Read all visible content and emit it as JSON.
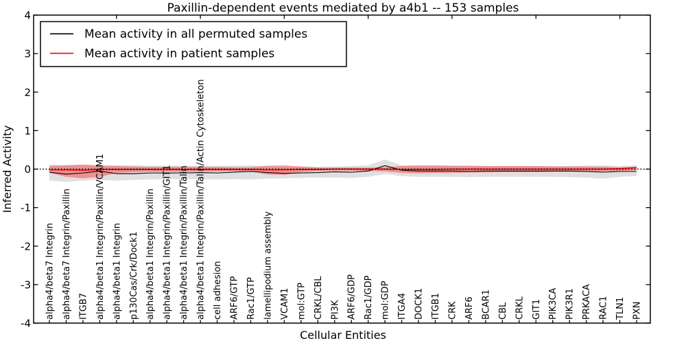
{
  "legend": {
    "position": "upper left",
    "entries": [
      {
        "label": "Mean activity in all permuted samples",
        "color": "#000000"
      },
      {
        "label": "Mean activity in patient samples",
        "color": "#ff0000"
      }
    ]
  },
  "chart_data": {
    "type": "line",
    "title": "Paxillin-dependent events mediated by a4b1 -- 153 samples",
    "xlabel": "Cellular Entities",
    "ylabel": "Inferred Activity",
    "ylim": [
      -4,
      4
    ],
    "yticks": [
      -4,
      -3,
      -2,
      -1,
      0,
      1,
      2,
      3,
      4
    ],
    "grid": false,
    "legend_position": "upper left",
    "x_tick_label_rotation": 90,
    "zero_line": {
      "style": "dotted",
      "color": "#000000",
      "y": 0
    },
    "categories": [
      "alpha4/beta7 Integrin",
      "alpha4/beta7 Integrin/Paxillin",
      "ITGB7",
      "alpha4/beta1 Integrin/Paxillin/VCAM1",
      "alpha4/beta1 Integrin",
      "p130Cas/Crk/Dock1",
      "alpha4/beta1 Integrin/Paxillin",
      "alpha4/beta1 Integrin/Paxillin/GIT1",
      "alpha4/beta1 Integrin/Paxillin/Talin",
      "alpha4/beta1 Integrin/Paxillin/Talin/Actin Cytoskeleton",
      "cell adhesion",
      "ARF6/GTP",
      "Rac1/GTP",
      "lamellipodium assembly",
      "VCAM1",
      "mol:GTP",
      "CRKL/CBL",
      "PI3K",
      "ARF6/GDP",
      "Rac1/GDP",
      "mol:GDP",
      "ITGA4",
      "DOCK1",
      "ITGB1",
      "CRK",
      "ARF6",
      "BCAR1",
      "CBL",
      "CRKL",
      "GIT1",
      "PIK3CA",
      "PIK3R1",
      "PRKACA",
      "RAC1",
      "TLN1",
      "PXN"
    ],
    "series": [
      {
        "name": "Mean activity in all permuted samples",
        "color": "#000000",
        "values": [
          -0.08,
          -0.13,
          -0.1,
          -0.05,
          -0.12,
          -0.12,
          -0.1,
          -0.1,
          -0.1,
          -0.09,
          -0.1,
          -0.08,
          -0.06,
          -0.09,
          -0.11,
          -0.1,
          -0.09,
          -0.07,
          -0.08,
          -0.05,
          0.09,
          -0.03,
          -0.05,
          -0.05,
          -0.05,
          -0.06,
          -0.05,
          -0.05,
          -0.05,
          -0.05,
          -0.05,
          -0.05,
          -0.06,
          -0.08,
          -0.06,
          -0.06
        ]
      },
      {
        "name": "Mean activity in patient samples",
        "color": "#ff0000",
        "values": [
          -0.02,
          -0.02,
          -0.03,
          -0.01,
          -0.01,
          -0.01,
          -0.01,
          -0.01,
          -0.01,
          -0.01,
          -0.01,
          -0.01,
          -0.01,
          -0.02,
          -0.02,
          -0.01,
          -0.01,
          0,
          0,
          0,
          0,
          -0.01,
          -0.01,
          -0.01,
          0,
          0,
          0,
          0,
          0,
          0,
          0,
          0,
          0,
          0,
          0.01,
          0.04
        ]
      }
    ],
    "bands": [
      {
        "name": "permuted samples range",
        "color": "rgba(0,0,0,0.12)",
        "upper": [
          0.12,
          0.1,
          0.1,
          0.08,
          0.1,
          0.1,
          0.09,
          0.09,
          0.09,
          0.08,
          0.08,
          0.09,
          0.1,
          0.07,
          0.06,
          0.07,
          0.06,
          0.07,
          0.08,
          0.1,
          0.25,
          0.1,
          0.08,
          0.08,
          0.08,
          0.08,
          0.08,
          0.08,
          0.08,
          0.08,
          0.08,
          0.08,
          0.09,
          0.1,
          0.08,
          0.1
        ],
        "lower": [
          -0.3,
          -0.33,
          -0.3,
          -0.28,
          -0.3,
          -0.28,
          -0.27,
          -0.26,
          -0.26,
          -0.26,
          -0.27,
          -0.26,
          -0.27,
          -0.25,
          -0.24,
          -0.23,
          -0.22,
          -0.22,
          -0.23,
          -0.2,
          -0.13,
          -0.18,
          -0.2,
          -0.2,
          -0.2,
          -0.21,
          -0.2,
          -0.2,
          -0.2,
          -0.2,
          -0.2,
          -0.21,
          -0.22,
          -0.25,
          -0.2,
          -0.18
        ]
      },
      {
        "name": "patient samples range",
        "color": "rgba(255,0,0,0.35)",
        "upper": [
          0.08,
          0.1,
          0.12,
          0.1,
          0.08,
          0.07,
          0.06,
          0.06,
          0.06,
          0.06,
          0.06,
          0.05,
          0.05,
          0.09,
          0.1,
          0.07,
          0.04,
          0.04,
          0.04,
          0.04,
          0.05,
          0.08,
          0.1,
          0.1,
          0.09,
          0.09,
          0.08,
          0.08,
          0.08,
          0.08,
          0.07,
          0.07,
          0.07,
          0.06,
          0.05,
          0.06
        ],
        "lower": [
          -0.1,
          -0.2,
          -0.24,
          -0.2,
          -0.1,
          -0.08,
          -0.07,
          -0.07,
          -0.07,
          -0.06,
          -0.06,
          -0.06,
          -0.06,
          -0.14,
          -0.15,
          -0.08,
          -0.05,
          -0.04,
          -0.04,
          -0.05,
          -0.06,
          -0.1,
          -0.11,
          -0.1,
          -0.1,
          -0.09,
          -0.09,
          -0.08,
          -0.08,
          -0.08,
          -0.07,
          -0.07,
          -0.07,
          -0.06,
          -0.05,
          -0.03
        ]
      }
    ],
    "top_axis_major_tick_indices": [
      4,
      9,
      14,
      19,
      24,
      29,
      34
    ]
  }
}
